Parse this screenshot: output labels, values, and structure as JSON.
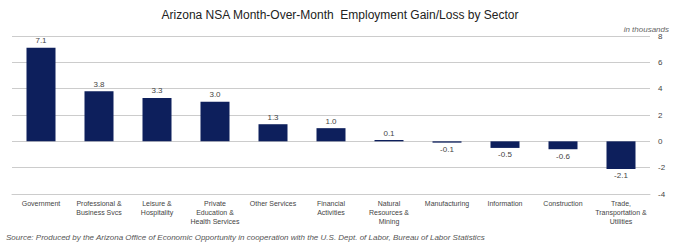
{
  "chart_data": {
    "type": "bar",
    "title": "Arizona NSA Month-Over-Month  Employment Gain/Loss by Sector",
    "subtitle": "in thousands",
    "annotations": [
      "Source: Produced by the Arizona Office of Economic Opportunity in cooperation with the U.S. Dept. of Labor, Bureau of Labor Statistics"
    ],
    "categories": [
      "Government",
      "Professional &\nBusiness Svcs",
      "Leisure &\nHospitality",
      "Private\nEducation &\nHealth Services",
      "Other Services",
      "Financial\nActivities",
      "Natural\nResources &\nMining",
      "Manufacturing",
      "Information",
      "Construction",
      "Trade,\nTransportation &\nUtilities"
    ],
    "values": [
      7.1,
      3.8,
      3.3,
      3.0,
      1.3,
      1.0,
      0.1,
      -0.1,
      -0.5,
      -0.6,
      -2.1
    ],
    "value_labels": [
      "7.1",
      "3.8",
      "3.3",
      "3.0",
      "1.3",
      "1.0",
      "0.1",
      "-0.1",
      "-0.5",
      "-0.6",
      "-2.1"
    ],
    "data_labels": true,
    "color": "#0d1f5c",
    "ylim": [
      -4.0,
      8.0
    ],
    "yticks": [
      -4.0,
      -2.0,
      0.0,
      2.0,
      4.0,
      6.0,
      8.0
    ],
    "grid": true
  }
}
